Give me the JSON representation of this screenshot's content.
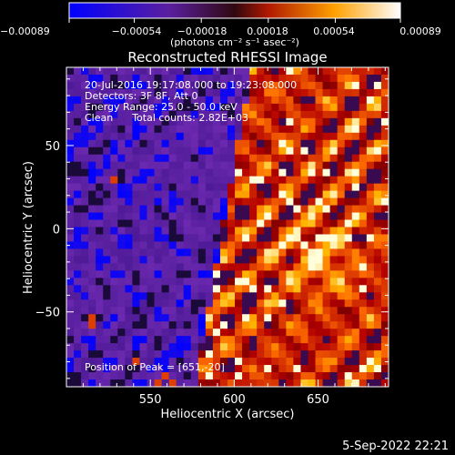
{
  "chart_data": {
    "type": "heatmap",
    "title": "Reconstructed RHESSI Image",
    "xlabel": "Heliocentric X (arcsec)",
    "ylabel": "Heliocentric Y (arcsec)",
    "xlim": [
      500,
      692
    ],
    "ylim": [
      -95,
      97
    ],
    "xticks": [
      "550",
      "600",
      "650"
    ],
    "xtick_values": [
      550,
      600,
      650
    ],
    "yticks": [
      "50",
      "0",
      "−50"
    ],
    "ytick_values": [
      50,
      0,
      -50
    ],
    "colorbar": {
      "range": [
        -0.00089,
        0.00089
      ],
      "tick_labels": [
        "−0.00089",
        "−0.00054",
        "−0.00018",
        "0.00018",
        "0.00054",
        "0.00089"
      ],
      "tick_values": [
        -0.00089,
        -0.00054,
        -0.00018,
        0.00018,
        0.00054,
        0.00089
      ],
      "label": "(photons cm⁻² s⁻¹ asec⁻²)",
      "colors": [
        "#0000ff",
        "#5a1fa0",
        "#9a2a18",
        "#ff3000",
        "#ffa000",
        "#ffffff"
      ]
    },
    "info_lines": [
      "20-Jul-2016 19:17:08.000 to 19:23:08.000",
      "Detectors: 3F 8F, Att 0",
      "Energy Range: 25.0 - 50.0 keV",
      "Clean      Total counts: 2.82E+03"
    ],
    "peak_label": "Position of Peak = [651,-20]",
    "peak": [
      651,
      -20
    ]
  },
  "footer_date": "5-Sep-2022 22:21"
}
